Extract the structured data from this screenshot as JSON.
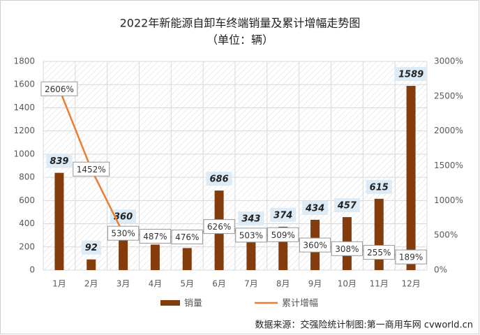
{
  "chart_data": {
    "type": "bar-line",
    "title": "2022年新能源自卸车终端销量及累计增幅走势图",
    "subtitle": "（单位：辆）",
    "source": "数据来源：交强险统计制图:第一商用车网 cvworld.cn",
    "categories": [
      "1月",
      "2月",
      "3月",
      "4月",
      "5月",
      "6月",
      "7月",
      "8月",
      "9月",
      "10月",
      "11月",
      "12月"
    ],
    "series": [
      {
        "name": "销量",
        "type": "bar",
        "color": "#843C0C",
        "values": [
          839,
          92,
          360,
          220,
          190,
          686,
          343,
          374,
          434,
          457,
          615,
          1589
        ],
        "value_labels": [
          "839",
          "92",
          "360",
          null,
          null,
          "686",
          "343",
          "374",
          "434",
          "457",
          "615",
          "1589"
        ]
      },
      {
        "name": "累计增幅",
        "type": "line",
        "axis": "y2",
        "color": "#ED7D31",
        "values": [
          2606,
          1452,
          530,
          487,
          476,
          626,
          503,
          509,
          360,
          308,
          255,
          189
        ],
        "value_labels": [
          "2606%",
          "1452%",
          "530%",
          "487%",
          "476%",
          "626%",
          "503%",
          "509%",
          "360%",
          "308%",
          "255%",
          "189%"
        ]
      }
    ],
    "ylim": [
      0,
      1800
    ],
    "yticks": [
      0,
      200,
      400,
      600,
      800,
      1000,
      1200,
      1400,
      1600,
      1800
    ],
    "y2lim": [
      0,
      3000
    ],
    "y2ticks": [
      {
        "value": 0,
        "label": "0%"
      },
      {
        "value": 500,
        "label": "500%"
      },
      {
        "value": 1000,
        "label": "1000%"
      },
      {
        "value": 1500,
        "label": "1500%"
      },
      {
        "value": 2000,
        "label": "2000%"
      },
      {
        "value": 2500,
        "label": "2500%"
      },
      {
        "value": 3000,
        "label": "3000%"
      }
    ],
    "grid": true,
    "legend": "bottom"
  }
}
